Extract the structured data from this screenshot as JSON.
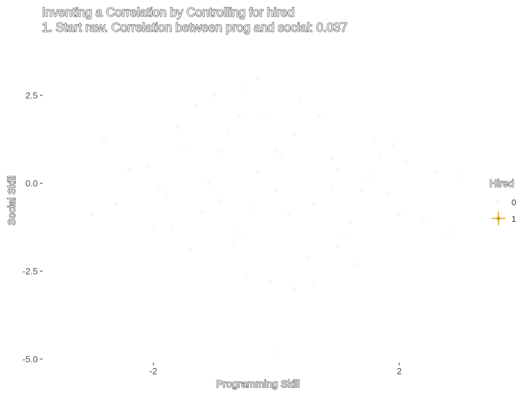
{
  "chart_data": {
    "type": "scatter",
    "title": "Inventing a Correlation by Controlling for hired",
    "subtitle": "1. Start raw. Correlation between prog and social: 0.037",
    "xlabel": "Programming Skill",
    "ylabel": "Social Skill",
    "xlim": [
      -3.8,
      3.2
    ],
    "ylim": [
      -5.1,
      4.0
    ],
    "x_ticks": [
      -2,
      2
    ],
    "x_tick_labels": [
      "-2",
      "2"
    ],
    "y_ticks": [
      2.5,
      0.0,
      -2.5,
      -5.0
    ],
    "y_tick_labels": [
      "2.5",
      "0.0",
      "-2.5",
      "-5.0"
    ],
    "grid": false,
    "legend": {
      "title": "Hired",
      "position": "right",
      "entries": [
        {
          "label": "0",
          "color": "#f7f7f7"
        },
        {
          "label": "1",
          "color": "#d4a017"
        }
      ]
    },
    "series": [
      {
        "name": "0",
        "color": "#f7f7f7",
        "x": [
          -2.1,
          -1.8,
          -1.5,
          -1.2,
          -0.9,
          -0.6,
          -0.3,
          0.0,
          0.3,
          0.6,
          0.9,
          1.2,
          1.5,
          1.8,
          2.1,
          -2.0,
          -1.6,
          -1.1,
          -0.7,
          -0.2,
          0.2,
          0.7,
          1.1,
          1.6,
          2.0,
          -2.4,
          -1.9,
          -1.4,
          -0.8,
          -0.4,
          0.1,
          0.5,
          1.0,
          1.4,
          1.9,
          2.4,
          -1.3,
          -0.5,
          0.4,
          1.3,
          -0.9,
          0.0,
          0.9,
          -2.6,
          2.6,
          -0.1,
          0.6,
          -0.6,
          1.7,
          -1.7,
          -3.0,
          3.0,
          -0.3,
          0.3,
          -1.0,
          1.0,
          -2.8,
          2.8,
          0.0,
          -0.5
        ],
        "y": [
          0.5,
          -0.4,
          1.1,
          -0.8,
          0.9,
          -1.4,
          0.3,
          -0.2,
          1.4,
          -0.6,
          0.7,
          -1.1,
          0.2,
          -0.3,
          0.6,
          -1.3,
          1.6,
          0.0,
          -1.7,
          2.0,
          -0.9,
          1.9,
          -1.6,
          1.2,
          -0.9,
          0.4,
          -0.1,
          -1.9,
          1.5,
          -0.7,
          0.8,
          -2.1,
          0.4,
          -0.2,
          1.1,
          -1.0,
          2.2,
          -2.6,
          2.4,
          -2.3,
          -0.5,
          0.9,
          -0.1,
          -0.6,
          0.3,
          -2.8,
          -2.9,
          1.9,
          0.8,
          -1.3,
          -0.9,
          0.2,
          3.0,
          -3.0,
          2.5,
          -1.8,
          1.2,
          -1.4,
          -4.8,
          2.7
        ]
      },
      {
        "name": "1",
        "color": "#d4a017",
        "x": [],
        "y": []
      }
    ]
  }
}
